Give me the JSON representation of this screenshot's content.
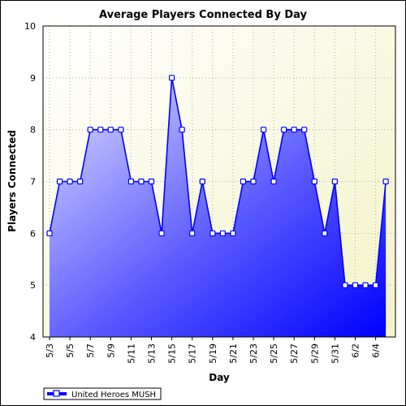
{
  "chart_data": {
    "type": "area",
    "title": "Average Players Connected By Day",
    "xlabel": "Day",
    "ylabel": "Players Connected",
    "ylim": [
      4,
      10
    ],
    "yticks": [
      4,
      5,
      6,
      7,
      8,
      9,
      10
    ],
    "grid": true,
    "legend_position": "bottom-left",
    "categories": [
      "5/3",
      "5/4",
      "5/5",
      "5/6",
      "5/7",
      "5/8",
      "5/9",
      "5/10",
      "5/11",
      "5/12",
      "5/13",
      "5/14",
      "5/15",
      "5/16",
      "5/17",
      "5/18",
      "5/19",
      "5/20",
      "5/21",
      "5/22",
      "5/23",
      "5/24",
      "5/25",
      "5/26",
      "5/27",
      "5/28",
      "5/29",
      "5/30",
      "5/31",
      "6/1",
      "6/2",
      "6/3",
      "6/4",
      "6/5"
    ],
    "tick_labels": [
      "5/3",
      "5/5",
      "5/7",
      "5/9",
      "5/11",
      "5/13",
      "5/15",
      "5/17",
      "5/19",
      "5/21",
      "5/23",
      "5/25",
      "5/27",
      "5/29",
      "5/31",
      "6/2",
      "6/4"
    ],
    "series": [
      {
        "name": "United Heroes MUSH",
        "color": "#0000ff",
        "values": [
          6,
          7,
          7,
          7,
          8,
          8,
          8,
          8,
          7,
          7,
          7,
          6,
          9,
          8,
          6,
          7,
          6,
          6,
          6,
          7,
          7,
          8,
          7,
          8,
          8,
          8,
          7,
          6,
          7,
          5,
          5,
          5,
          5,
          7
        ]
      }
    ],
    "colors": {
      "plot_background_top": "#fffff0",
      "plot_background_bottom": "#f2f2c0",
      "area_light": "#d4d4ff",
      "area_dark": "#0000ff",
      "line": "#0000ff",
      "marker_fill": "#ffffff",
      "grid": "#b0b0b0"
    }
  }
}
